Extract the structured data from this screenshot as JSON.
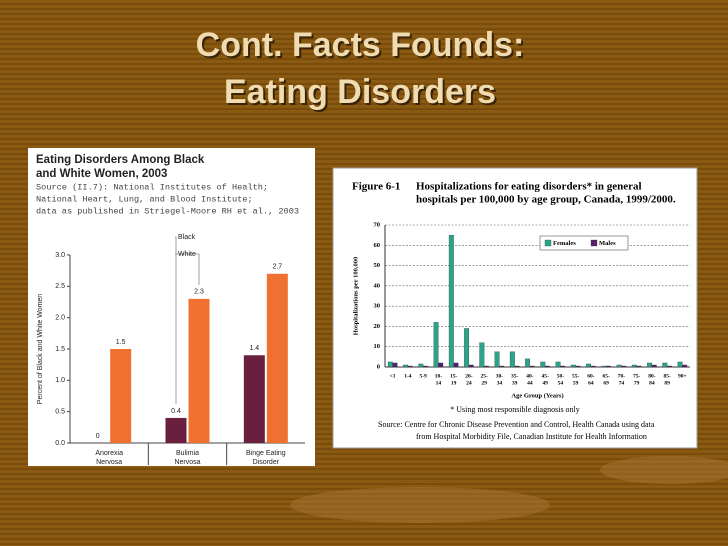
{
  "title": [
    "Cont. Facts Founds:",
    "Eating Disorders"
  ],
  "chart_data": [
    {
      "type": "bar",
      "title": [
        "Eating Disorders Among Black",
        "and White Women, 2003"
      ],
      "subtitle": [
        "Source (II.7): National Institutes of Health;",
        "National Heart, Lung, and Blood Institute;",
        "data as published in Striegel-Moore RH et al., 2003"
      ],
      "y_label": "Percent of Black and White Women",
      "categories": [
        "Anorexia Nervosa",
        "Bulimia Nervosa",
        "Binge Eating Disorder"
      ],
      "series": [
        {
          "name": "Black",
          "color": "#6b1f3f",
          "values": [
            0,
            0.4,
            1.4
          ]
        },
        {
          "name": "White",
          "color": "#f07030",
          "values": [
            1.5,
            2.3,
            2.7
          ]
        }
      ],
      "ylim": [
        0,
        3
      ],
      "yticks": [
        {
          "value": 0,
          "label": "0.0"
        },
        0.5,
        {
          "value": 1,
          "label": "1.0"
        },
        1.5,
        {
          "value": 2,
          "label": "2.0"
        },
        2.5,
        {
          "value": 3,
          "label": "3.0"
        }
      ]
    },
    {
      "type": "bar",
      "figure": "Figure 6-1",
      "title": [
        "Hospitalizations for eating disorders* in general",
        "hospitals per 100,000 by age group, Canada, 1999/2000."
      ],
      "y_label": "Hospitalizations per 100,000",
      "x_label": "Age Group (Years)",
      "note": "* Using most responsible diagnosis only",
      "source": [
        "Source:   Centre for Chronic Disease Prevention and Control, Health Canada using data",
        "from Hospital Morbidity File, Canadian Institute for Health Information"
      ],
      "categories": [
        "<1",
        "1-4",
        "5-9",
        "10-14",
        "15-19",
        "20-24",
        "25-29",
        "30-34",
        "35-39",
        "40-44",
        "45-49",
        "50-54",
        "55-59",
        "60-64",
        "65-69",
        "70-74",
        "75-79",
        "80-84",
        "85-89",
        "90+"
      ],
      "series": [
        {
          "name": "Females",
          "color": "#2aa58a",
          "values": [
            2.5,
            1,
            1.5,
            22,
            65,
            19,
            12,
            7.5,
            7.5,
            4,
            2.5,
            2.5,
            1,
            1.5,
            0.5,
            1,
            1,
            2,
            2,
            2.5
          ]
        },
        {
          "name": "Males",
          "color": "#5a1e6e",
          "values": [
            2,
            0.5,
            0.5,
            2,
            2,
            1,
            0.5,
            0.5,
            0.5,
            0.5,
            0.5,
            0.5,
            0.5,
            0.5,
            0.5,
            0.5,
            0.5,
            1,
            0.5,
            1
          ]
        }
      ],
      "ylim": [
        0,
        70
      ],
      "yticks": [
        0,
        10,
        20,
        30,
        40,
        50,
        60,
        70
      ],
      "grid": true
    }
  ]
}
